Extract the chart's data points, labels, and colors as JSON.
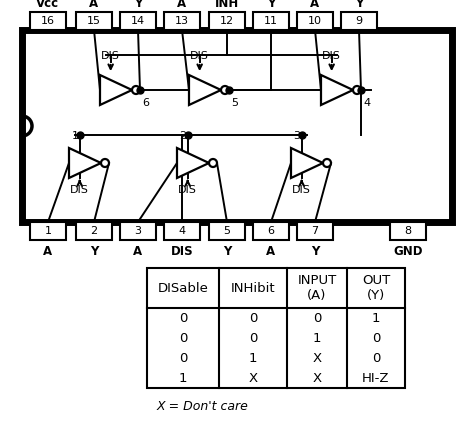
{
  "bg_color": "#ffffff",
  "pin_top_numbers": [
    "16",
    "15",
    "14",
    "13",
    "12",
    "11",
    "10",
    "9"
  ],
  "pin_top_labels": [
    "Vcc",
    "A",
    "Y",
    "A",
    "INH",
    "Y",
    "A",
    "Y"
  ],
  "pin_bot_numbers": [
    "1",
    "2",
    "3",
    "4",
    "5",
    "6",
    "7",
    "8"
  ],
  "pin_bot_labels": [
    "A",
    "Y",
    "A",
    "DIS",
    "Y",
    "A",
    "Y",
    "GND"
  ],
  "table_headers": [
    "DISable",
    "INHibit",
    "INPUT\n(A)",
    "OUT\n(Y)"
  ],
  "table_data_cols": [
    [
      "0",
      "0",
      "0",
      "1"
    ],
    [
      "0",
      "0",
      "1",
      "X"
    ],
    [
      "0",
      "1",
      "X",
      "X"
    ],
    [
      "1",
      "0",
      "0",
      "HI-Z"
    ]
  ],
  "table_rows_display": [
    [
      "0",
      "0",
      "0",
      "1"
    ],
    [
      "0",
      "0",
      "1",
      "0"
    ],
    [
      "0",
      "1",
      "X",
      "0"
    ],
    [
      "1",
      "X",
      "X",
      "HI-Z"
    ]
  ],
  "table_note": "X = Don't care"
}
